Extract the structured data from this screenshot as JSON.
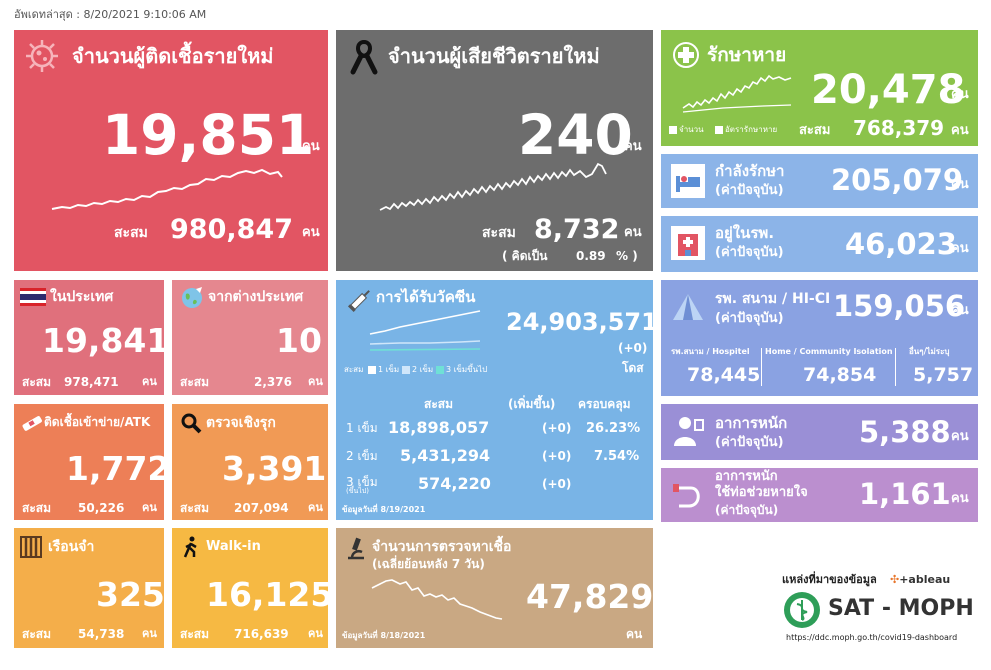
{
  "updated": "อัพเดทล่าสุด : 8/20/2021 9:10:06 AM",
  "unit": "คน",
  "acc": "สะสม",
  "new_cases": {
    "title": "จำนวนผู้ติดเชื้อรายใหม่",
    "value": "19,851",
    "total": "980,847",
    "color": "#e25563"
  },
  "deaths": {
    "title": "จำนวนผู้เสียชีวิตรายใหม่",
    "value": "240",
    "total": "8,732",
    "rate_label": "( คิดเป็น",
    "rate": "0.89",
    "rate_suffix": "% )",
    "color": "#6d6d6d"
  },
  "recovered": {
    "title": "รักษาหาย",
    "value": "20,478",
    "total": "768,379",
    "legend1": "จำนวน",
    "legend2": "อัตรารักษาหาย",
    "color": "#8bc34a"
  },
  "treating": {
    "title": "กำลังรักษา",
    "sub": "(ค่าปัจจุบัน)",
    "value": "205,079",
    "color": "#8cb4e8"
  },
  "hospital": {
    "title": "อยู่ในรพ.",
    "sub": "(ค่าปัจจุบัน)",
    "value": "46,023",
    "color": "#8cb4e8"
  },
  "field": {
    "title": "รพ. สนาม / HI-CI",
    "sub": "(ค่าปัจจุบัน)",
    "value": "159,056",
    "color": "#8aa2e2",
    "c1_label": "รพ.สนาม / Hospitel",
    "c1_value": "78,445",
    "c2_label": "Home / Community Isolation",
    "c2_value": "74,854",
    "c3_label": "อื่นๆ/ไม่ระบุ",
    "c3_value": "5,757"
  },
  "severe": {
    "title": "อาการหนัก",
    "sub": "(ค่าปัจจุบัน)",
    "value": "5,388",
    "color": "#9a8fd6"
  },
  "ventilator": {
    "title1": "อาการหนัก",
    "title2": "ใช้ท่อช่วยหายใจ",
    "sub": "(ค่าปัจจุบัน)",
    "value": "1,161",
    "color": "#bb8fcf"
  },
  "domestic": {
    "title": "ในประเทศ",
    "value": "19,841",
    "total": "978,471",
    "color": "#e0707c"
  },
  "abroad": {
    "title": "จากต่างประเทศ",
    "value": "10",
    "total": "2,376",
    "color": "#e5878f"
  },
  "prison_net": {
    "title": "ติดเชื้อเข้าข่าย/ATK",
    "value": "1,772",
    "total": "50,226",
    "color": "#ed7f57"
  },
  "proactive": {
    "title": "ตรวจเชิงรุก",
    "value": "3,391",
    "total": "207,094",
    "color": "#f19a55"
  },
  "prison": {
    "title": "เรือนจำ",
    "value": "325",
    "total": "54,738",
    "color": "#f4ae4a"
  },
  "walkin": {
    "title": "Walk-in",
    "value": "16,125",
    "total": "716,639",
    "color": "#f6b943"
  },
  "vaccine": {
    "title": "การได้รับวัคซีน",
    "value": "24,903,571",
    "plus": "(+0)",
    "dose_unit": "โดส",
    "legend_prefix": "สะสม",
    "legend1": "1 เข็ม",
    "legend2": "2 เข็ม",
    "legend3": "3 เข็มขึ้นไป",
    "h_acc": "สะสม",
    "h_inc": "(เพิ่มขึ้น)",
    "h_cov": "ครอบคลุม",
    "rows": [
      {
        "label": "1 เข็ม",
        "acc": "18,898,057",
        "inc": "(+0)",
        "cov": "26.23%"
      },
      {
        "label": "2 เข็ม",
        "acc": "5,431,294",
        "inc": "(+0)",
        "cov": "7.54%"
      },
      {
        "label": "3 เข็ม",
        "label2": "(ขึ้นไป)",
        "acc": "574,220",
        "inc": "(+0)",
        "cov": ""
      }
    ],
    "date": "ข้อมูลวันที่ 8/19/2021",
    "color": "#79b4e6"
  },
  "tests": {
    "title": "จำนวนการตรวจหาเชื้อ",
    "sub": "(เฉลี่ยย้อนหลัง 7 วัน)",
    "value": "47,829",
    "unit": "คน",
    "date": "ข้อมูลวันที่ 8/18/2021",
    "color": "#c9a883"
  },
  "source": {
    "label": "แหล่งที่มาของข้อมูล",
    "tableau": "+ableau",
    "org": "SAT - MOPH",
    "url": "https://ddc.moph.go.th/covid19-dashboard"
  }
}
